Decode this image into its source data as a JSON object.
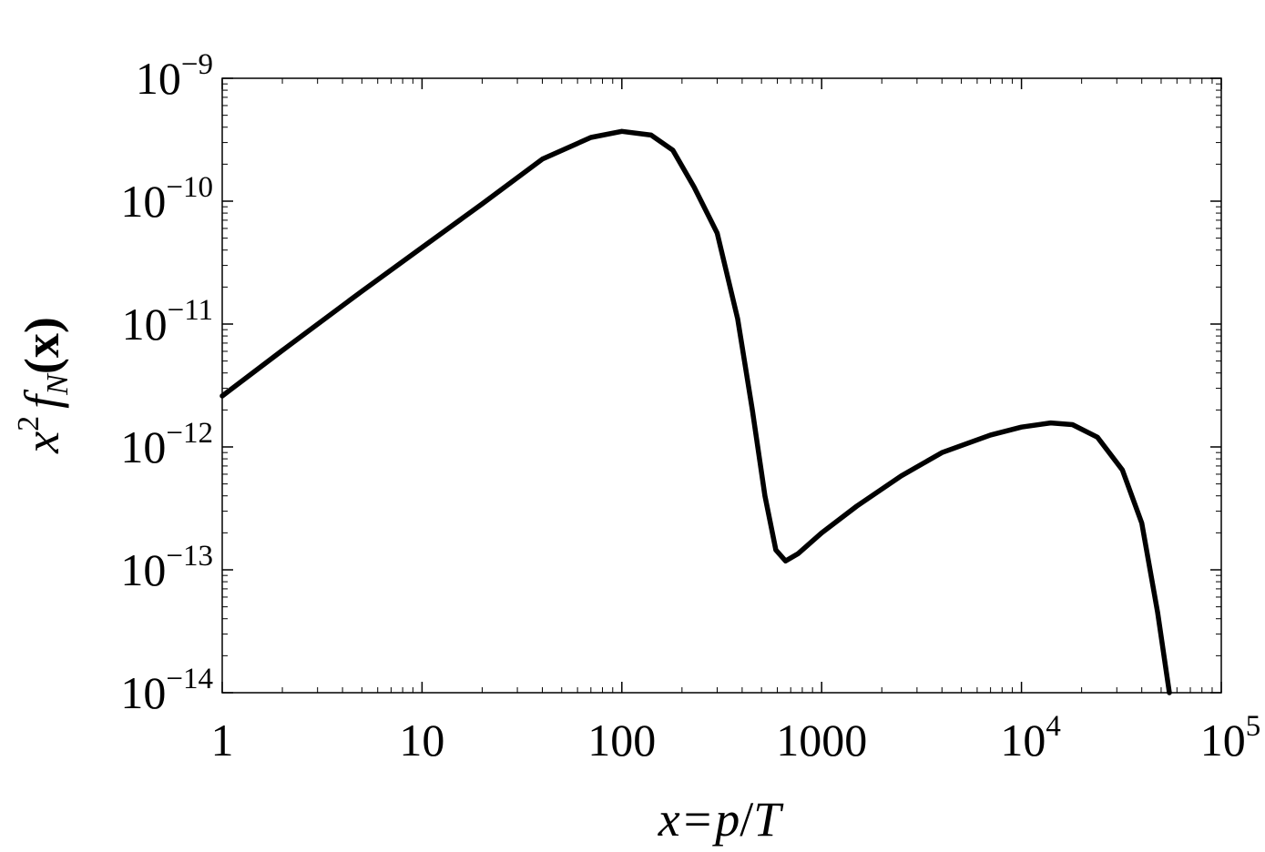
{
  "chart_data": {
    "type": "line",
    "xlabel": {
      "var": "x",
      "eq": "=",
      "num": "p",
      "slash": "/",
      "den": "T"
    },
    "ylabel": {
      "base": "x",
      "pow": "2",
      "func": "f",
      "sub": "N",
      "arg": "(x)"
    },
    "x_scale": "log",
    "y_scale": "log",
    "xlim": [
      1,
      100000
    ],
    "ylim": [
      1e-14,
      1e-09
    ],
    "grid": false,
    "x_ticks": [
      {
        "value": 1,
        "base": "1",
        "exp": ""
      },
      {
        "value": 10,
        "base": "10",
        "exp": ""
      },
      {
        "value": 100,
        "base": "100",
        "exp": ""
      },
      {
        "value": 1000,
        "base": "1000",
        "exp": ""
      },
      {
        "value": 10000,
        "base": "10",
        "exp": "4"
      },
      {
        "value": 100000,
        "base": "10",
        "exp": "5"
      }
    ],
    "y_ticks": [
      {
        "value": 1e-14,
        "base": "10",
        "exp": "−14"
      },
      {
        "value": 1e-13,
        "base": "10",
        "exp": "−13"
      },
      {
        "value": 1e-12,
        "base": "10",
        "exp": "−12"
      },
      {
        "value": 1e-11,
        "base": "10",
        "exp": "−11"
      },
      {
        "value": 1e-10,
        "base": "10",
        "exp": "−10"
      },
      {
        "value": 1e-09,
        "base": "10",
        "exp": "−9"
      }
    ],
    "series": [
      {
        "color": "#000000",
        "x": [
          1,
          2,
          5,
          10,
          20,
          40,
          70,
          100,
          140,
          180,
          230,
          300,
          380,
          450,
          520,
          590,
          660,
          760,
          1000,
          1500,
          2500,
          4000,
          7000,
          10000,
          14000,
          18000,
          24000,
          32000,
          40000,
          48000,
          55000
        ],
        "y": [
          2.6e-12,
          6.1e-12,
          1.85e-11,
          4.2e-11,
          9.5e-11,
          2.2e-10,
          3.3e-10,
          3.7e-10,
          3.45e-10,
          2.6e-10,
          1.3e-10,
          5.5e-11,
          1.1e-11,
          2e-12,
          4e-13,
          1.45e-13,
          1.18e-13,
          1.35e-13,
          2e-13,
          3.3e-13,
          5.8e-13,
          9e-13,
          1.25e-12,
          1.45e-12,
          1.57e-12,
          1.52e-12,
          1.2e-12,
          6.5e-13,
          2.4e-13,
          4.5e-14,
          1e-14
        ]
      }
    ]
  }
}
